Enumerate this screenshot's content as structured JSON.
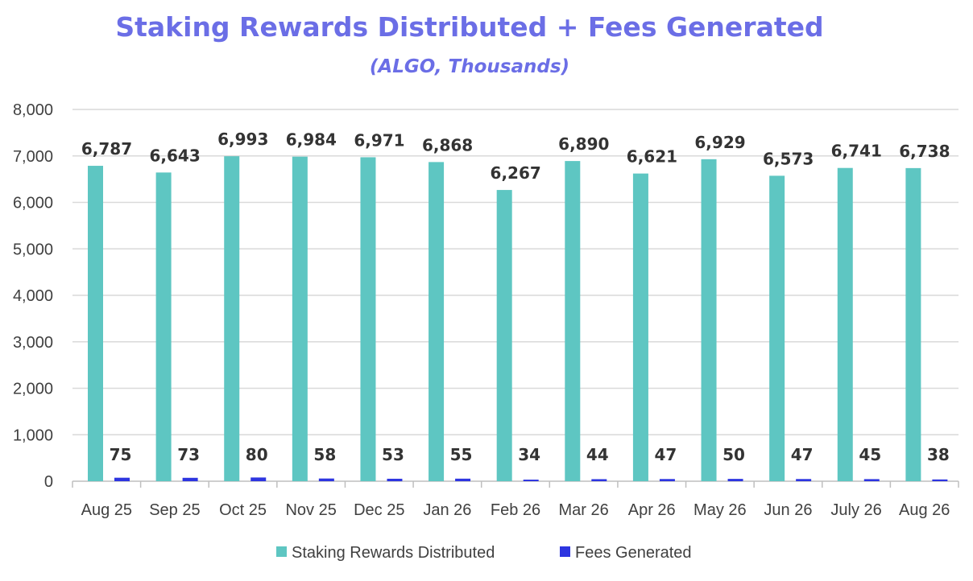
{
  "chart_data": {
    "type": "bar",
    "title": "Staking Rewards Distributed + Fees Generated",
    "subtitle": "(ALGO, Thousands)",
    "categories": [
      "Aug 25",
      "Sep 25",
      "Oct 25",
      "Nov 25",
      "Dec 25",
      "Jan 26",
      "Feb 26",
      "Mar 26",
      "Apr 26",
      "May 26",
      "Jun 26",
      "July 26",
      "Aug 26"
    ],
    "series": [
      {
        "name": "Staking Rewards Distributed",
        "color": "#5ec6c2",
        "values": [
          6787,
          6643,
          6993,
          6984,
          6971,
          6868,
          6267,
          6890,
          6621,
          6929,
          6573,
          6741,
          6738
        ],
        "labels": [
          "6,787",
          "6,643",
          "6,993",
          "6,984",
          "6,971",
          "6,868",
          "6,267",
          "6,890",
          "6,621",
          "6,929",
          "6,573",
          "6,741",
          "6,738"
        ]
      },
      {
        "name": "Fees Generated",
        "color": "#2d35e0",
        "values": [
          75,
          73,
          80,
          58,
          53,
          55,
          34,
          44,
          47,
          50,
          47,
          45,
          38
        ],
        "labels": [
          "75",
          "73",
          "80",
          "58",
          "53",
          "55",
          "34",
          "44",
          "47",
          "50",
          "47",
          "45",
          "38"
        ]
      }
    ],
    "ylim": [
      0,
      8000
    ],
    "yticks": [
      0,
      1000,
      2000,
      3000,
      4000,
      5000,
      6000,
      7000,
      8000
    ],
    "ytick_labels": [
      "0",
      "1,000",
      "2,000",
      "3,000",
      "4,000",
      "5,000",
      "6,000",
      "7,000",
      "8,000"
    ],
    "grid": true,
    "legend_position": "bottom"
  }
}
